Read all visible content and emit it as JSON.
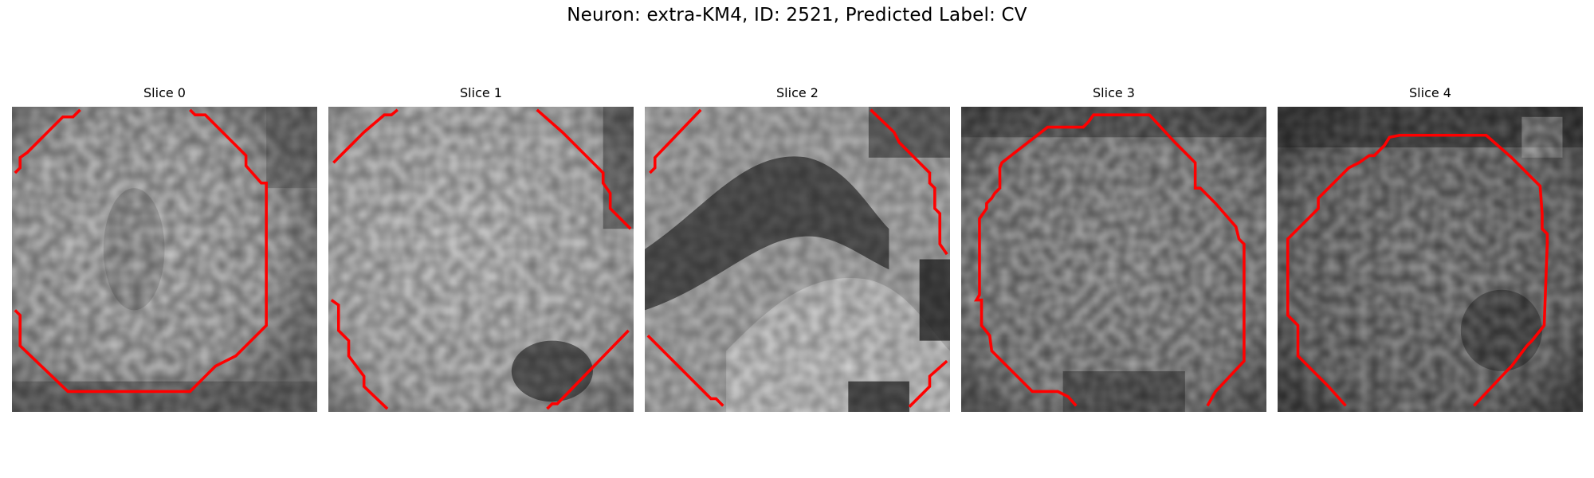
{
  "figure": {
    "title": "Neuron: extra-KM4, ID: 2521, Predicted Label: CV",
    "contour_color": "#ff0000",
    "colormap": "grayscale",
    "slices": [
      {
        "title": "Slice 0"
      },
      {
        "title": "Slice 1"
      },
      {
        "title": "Slice 2"
      },
      {
        "title": "Slice 3"
      },
      {
        "title": "Slice 4"
      }
    ]
  }
}
